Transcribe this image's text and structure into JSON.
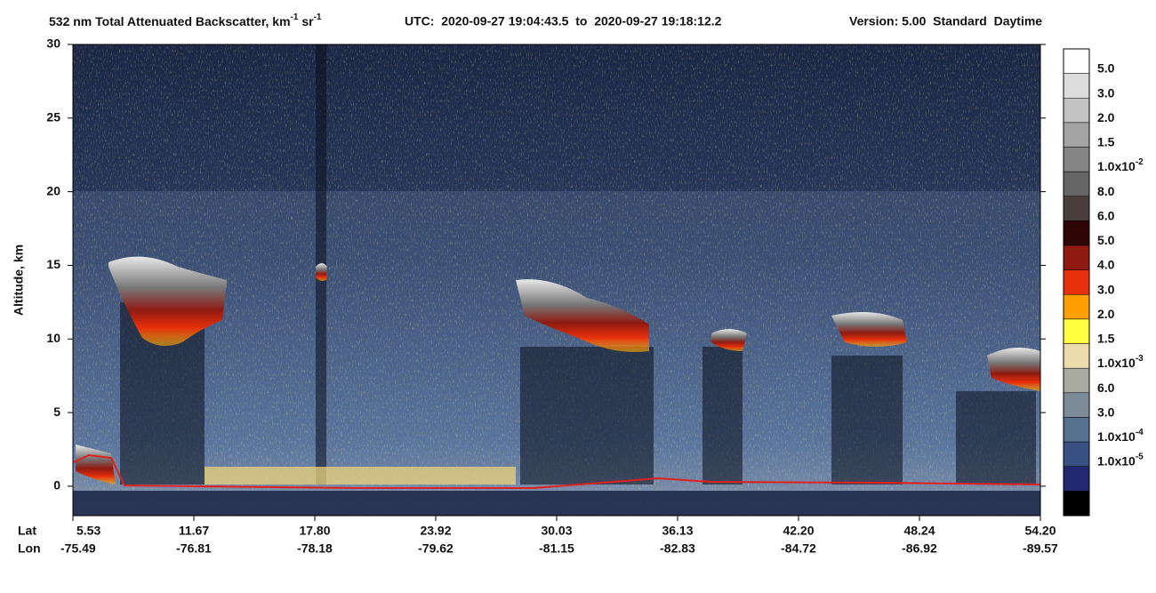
{
  "chart_data": {
    "type": "lidar-profile",
    "title": {
      "main": "532 nm Total Attenuated Backscatter, km",
      "sup1": "-1",
      "mid": " sr",
      "sup2": "-1"
    },
    "utc": "UTC:  2020-09-27 19:04:43.5  to  2020-09-27 19:18:12.2",
    "version": "Version: 5.00  Standard  Daytime",
    "y_label": "Altitude, km",
    "ylim": [
      -2,
      30
    ],
    "yticks": [
      0,
      5,
      10,
      15,
      20,
      25,
      30
    ],
    "x_row_labels": [
      "Lat",
      "Lon"
    ],
    "lat": [
      "5.53",
      "11.67",
      "17.80",
      "23.92",
      "30.03",
      "36.13",
      "42.20",
      "48.24",
      "54.20"
    ],
    "lon": [
      "-75.49",
      "-76.81",
      "-78.18",
      "-79.62",
      "-81.15",
      "-82.83",
      "-84.72",
      "-86.92",
      "-89.57"
    ],
    "colorbar": {
      "colors": [
        "#ffffff",
        "#dcdcdc",
        "#c2c2c2",
        "#a3a3a3",
        "#858585",
        "#666666",
        "#4a3e3b",
        "#300505",
        "#8e1a12",
        "#e8300c",
        "#ff9e00",
        "#ffff40",
        "#ecdcab",
        "#a8aaa0",
        "#7d8a97",
        "#56708f",
        "#3a4f82",
        "#222870",
        "#000000"
      ],
      "labels": [
        {
          "text": "5.0"
        },
        {
          "text": "3.0"
        },
        {
          "text": "2.0"
        },
        {
          "text": "1.5"
        },
        {
          "text": "1.0x10",
          "exp": "-2"
        },
        {
          "text": "8.0"
        },
        {
          "text": "6.0"
        },
        {
          "text": "5.0"
        },
        {
          "text": "4.0"
        },
        {
          "text": "3.0"
        },
        {
          "text": "2.0"
        },
        {
          "text": "1.5"
        },
        {
          "text": "1.0x10",
          "exp": "-3"
        },
        {
          "text": "6.0"
        },
        {
          "text": "3.0"
        },
        {
          "text": "1.0x10",
          "exp": "-4"
        },
        {
          "text": "1.0x10",
          "exp": "-5"
        }
      ]
    }
  }
}
